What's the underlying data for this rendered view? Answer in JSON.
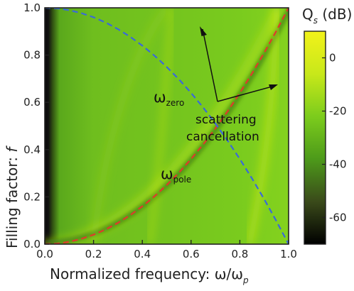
{
  "chart_data": {
    "type": "heatmap",
    "xlabel": "Normalized frequency: ω/ω",
    "xlabel_sub": "p",
    "ylabel": "Filling factor: ",
    "ylabel_italic": "f",
    "xlim": [
      0,
      1
    ],
    "ylim": [
      0,
      1
    ],
    "x_ticks": [
      "0.0",
      "0.2",
      "0.4",
      "0.6",
      "0.8",
      "1.0"
    ],
    "y_ticks": [
      "0.0",
      "0.2",
      "0.4",
      "0.6",
      "0.8",
      "1.0"
    ],
    "colorbar": {
      "title": "Q",
      "title_sub": "s",
      "title_unit": " (dB)",
      "range": [
        -70,
        10
      ],
      "ticks": [
        "0",
        "-20",
        "-40",
        "-60"
      ],
      "tick_values": [
        0,
        -20,
        -40,
        -60
      ],
      "colors": [
        "#000000",
        "#3a4a1a",
        "#4d9a1a",
        "#7ccc1c",
        "#c8e81a",
        "#f2f21a"
      ]
    },
    "series": [
      {
        "name": "ω_zero",
        "label_main": "ω",
        "label_sub": "zero",
        "color": "#e03a2a",
        "style": "dashed",
        "x": [
          0.0,
          0.05,
          0.1,
          0.15,
          0.2,
          0.25,
          0.3,
          0.35,
          0.4,
          0.45,
          0.5,
          0.55,
          0.6,
          0.65,
          0.7,
          0.75,
          0.8,
          0.85,
          0.9,
          0.95,
          1.0
        ],
        "y": [
          0.0,
          0.0025,
          0.01,
          0.0225,
          0.04,
          0.0625,
          0.09,
          0.1225,
          0.16,
          0.2025,
          0.25,
          0.3025,
          0.36,
          0.4225,
          0.49,
          0.5625,
          0.64,
          0.7225,
          0.81,
          0.9025,
          1.0
        ]
      },
      {
        "name": "ω_pole",
        "label_main": "ω",
        "label_sub": "pole",
        "color": "#3a6ad8",
        "style": "dashed",
        "x": [
          0.0,
          0.05,
          0.1,
          0.15,
          0.2,
          0.25,
          0.3,
          0.35,
          0.4,
          0.45,
          0.5,
          0.55,
          0.6,
          0.65,
          0.7,
          0.75,
          0.8,
          0.85,
          0.9,
          0.95,
          1.0
        ],
        "y": [
          1.0,
          0.9975,
          0.99,
          0.9775,
          0.96,
          0.9375,
          0.91,
          0.8775,
          0.84,
          0.7975,
          0.75,
          0.6975,
          0.64,
          0.5775,
          0.51,
          0.4375,
          0.36,
          0.2775,
          0.19,
          0.0975,
          0.0
        ]
      }
    ],
    "annotations": [
      {
        "text_line1": "scattering",
        "text_line2": "cancellation"
      }
    ]
  }
}
